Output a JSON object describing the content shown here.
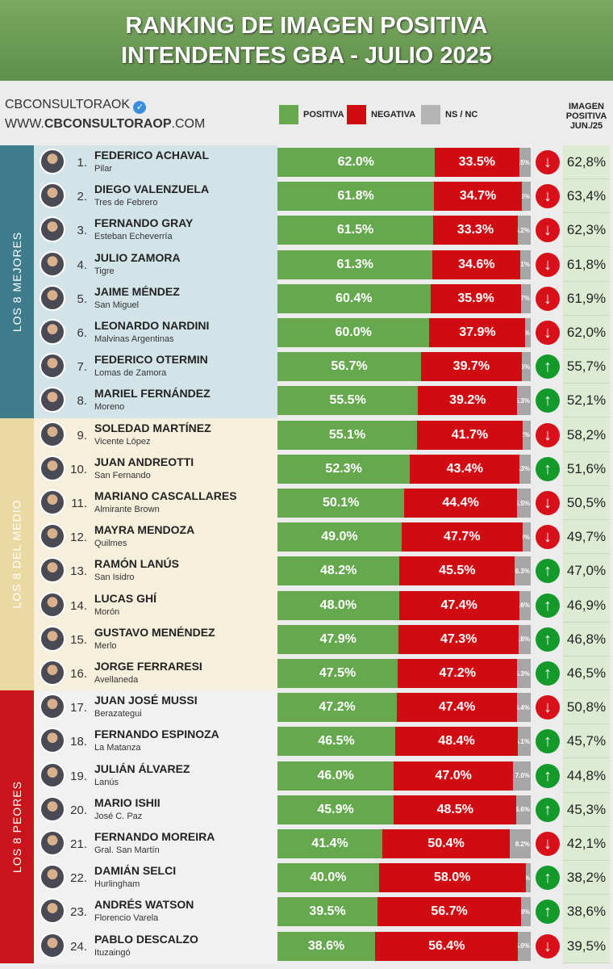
{
  "header": {
    "title_line1": "RANKING DE IMAGEN POSITIVA",
    "title_line2": "INTENDENTES GBA - JULIO 2025",
    "account": "CBCONSULTORAOK",
    "website_prefix": "WWW.",
    "website_bold": "CBCONSULTORAOP",
    "website_suffix": ".COM",
    "prev_header": [
      "IMAGEN",
      "POSITIVA",
      "JUN./25"
    ]
  },
  "colors": {
    "positiva": "#66a84e",
    "negativa": "#d00b12",
    "nsnc": "#a6a6a6",
    "up": "#14992b",
    "down": "#d8101a",
    "band_mejores": "#3e7b8b",
    "band_medio": "#ead9a2",
    "band_peores": "#c9141b"
  },
  "chart_data": {
    "type": "bar",
    "stacked": true,
    "orientation": "horizontal",
    "xlim": [
      0,
      100
    ],
    "legend": [
      "POSITIVA",
      "NEGATIVA",
      "NS / NC"
    ],
    "legend_position": "top",
    "groups": [
      {
        "label": "LOS 8 MEJORES",
        "ranks": [
          1,
          8
        ]
      },
      {
        "label": "LOS 8 DEL MEDIO",
        "ranks": [
          9,
          16
        ]
      },
      {
        "label": "LOS 8 PEORES",
        "ranks": [
          17,
          24
        ]
      }
    ],
    "rows": [
      {
        "rank": "1.",
        "name": "FEDERICO ACHAVAL",
        "district": "Pilar",
        "pos": 62.0,
        "neg": 33.5,
        "ns": 4.5,
        "trend": "down",
        "prev": "62,8%"
      },
      {
        "rank": "2.",
        "name": "DIEGO VALENZUELA",
        "district": "Tres de Febrero",
        "pos": 61.8,
        "neg": 34.7,
        "ns": 3.5,
        "trend": "down",
        "prev": "63,4%"
      },
      {
        "rank": "3.",
        "name": "FERNANDO GRAY",
        "district": "Esteban Echeverría",
        "pos": 61.5,
        "neg": 33.3,
        "ns": 5.2,
        "trend": "down",
        "prev": "62,3%"
      },
      {
        "rank": "4.",
        "name": "JULIO ZAMORA",
        "district": "Tigre",
        "pos": 61.3,
        "neg": 34.6,
        "ns": 4.1,
        "trend": "down",
        "prev": "61,8%"
      },
      {
        "rank": "5.",
        "name": "JAIME MÉNDEZ",
        "district": "San Miguel",
        "pos": 60.4,
        "neg": 35.9,
        "ns": 3.7,
        "trend": "down",
        "prev": "61,9%"
      },
      {
        "rank": "6.",
        "name": "LEONARDO NARDINI",
        "district": "Malvinas Argentinas",
        "pos": 60.0,
        "neg": 37.9,
        "ns": 2.1,
        "trend": "down",
        "prev": "62,0%"
      },
      {
        "rank": "7.",
        "name": "FEDERICO OTERMIN",
        "district": "Lomas de Zamora",
        "pos": 56.7,
        "neg": 39.7,
        "ns": 3.6,
        "trend": "up",
        "prev": "55,7%"
      },
      {
        "rank": "8.",
        "name": "MARIEL FERNÁNDEZ",
        "district": "Moreno",
        "pos": 55.5,
        "neg": 39.2,
        "ns": 5.3,
        "trend": "up",
        "prev": "52,1%"
      },
      {
        "rank": "9.",
        "name": "SOLEDAD MARTÍNEZ",
        "district": "Vicente López",
        "pos": 55.1,
        "neg": 41.7,
        "ns": 3.2,
        "trend": "down",
        "prev": "58,2%"
      },
      {
        "rank": "10.",
        "name": "JUAN ANDREOTTI",
        "district": "San Fernando",
        "pos": 52.3,
        "neg": 43.4,
        "ns": 4.3,
        "trend": "up",
        "prev": "51,6%"
      },
      {
        "rank": "11.",
        "name": "MARIANO CASCALLARES",
        "district": "Almirante Brown",
        "pos": 50.1,
        "neg": 44.4,
        "ns": 5.5,
        "trend": "down",
        "prev": "50,5%"
      },
      {
        "rank": "12.",
        "name": "MAYRA MENDOZA",
        "district": "Quilmes",
        "pos": 49.0,
        "neg": 47.7,
        "ns": 3.3,
        "trend": "down",
        "prev": "49,7%"
      },
      {
        "rank": "13.",
        "name": "RAMÓN LANÚS",
        "district": "San Isidro",
        "pos": 48.2,
        "neg": 45.5,
        "ns": 6.3,
        "trend": "up",
        "prev": "47,0%"
      },
      {
        "rank": "14.",
        "name": "LUCAS GHÍ",
        "district": "Morón",
        "pos": 48.0,
        "neg": 47.4,
        "ns": 4.6,
        "trend": "up",
        "prev": "46,9%"
      },
      {
        "rank": "15.",
        "name": "GUSTAVO MENÉNDEZ",
        "district": "Merlo",
        "pos": 47.9,
        "neg": 47.3,
        "ns": 4.8,
        "trend": "up",
        "prev": "46,8%"
      },
      {
        "rank": "16.",
        "name": "JORGE FERRARESI",
        "district": "Avellaneda",
        "pos": 47.5,
        "neg": 47.2,
        "ns": 5.3,
        "trend": "up",
        "prev": "46,5%"
      },
      {
        "rank": "17.",
        "name": "JUAN JOSÉ MUSSI",
        "district": "Berazategui",
        "pos": 47.2,
        "neg": 47.4,
        "ns": 5.4,
        "trend": "down",
        "prev": "50,8%"
      },
      {
        "rank": "18.",
        "name": "FERNANDO ESPINOZA",
        "district": "La Matanza",
        "pos": 46.5,
        "neg": 48.4,
        "ns": 5.1,
        "trend": "up",
        "prev": "45,7%"
      },
      {
        "rank": "19.",
        "name": "JULIÁN ÁLVAREZ",
        "district": "Lanús",
        "pos": 46.0,
        "neg": 47.0,
        "ns": 7.0,
        "trend": "up",
        "prev": "44,8%"
      },
      {
        "rank": "20.",
        "name": "MARIO ISHII",
        "district": "José C. Paz",
        "pos": 45.9,
        "neg": 48.5,
        "ns": 5.6,
        "trend": "up",
        "prev": "45,3%"
      },
      {
        "rank": "21.",
        "name": "FERNANDO MOREIRA",
        "district": "Gral. San Martín",
        "pos": 41.4,
        "neg": 50.4,
        "ns": 8.2,
        "trend": "down",
        "prev": "42,1%"
      },
      {
        "rank": "22.",
        "name": "DAMIÁN SELCI",
        "district": "Hurlingham",
        "pos": 40.0,
        "neg": 58.0,
        "ns": 2.0,
        "trend": "up",
        "prev": "38,2%"
      },
      {
        "rank": "23.",
        "name": "ANDRÉS WATSON",
        "district": "Florencio Varela",
        "pos": 39.5,
        "neg": 56.7,
        "ns": 3.8,
        "trend": "up",
        "prev": "38,6%"
      },
      {
        "rank": "24.",
        "name": "PABLO DESCALZO",
        "district": "Ituzaingó",
        "pos": 38.6,
        "neg": 56.4,
        "ns": 5.0,
        "trend": "down",
        "prev": "39,5%"
      }
    ]
  }
}
